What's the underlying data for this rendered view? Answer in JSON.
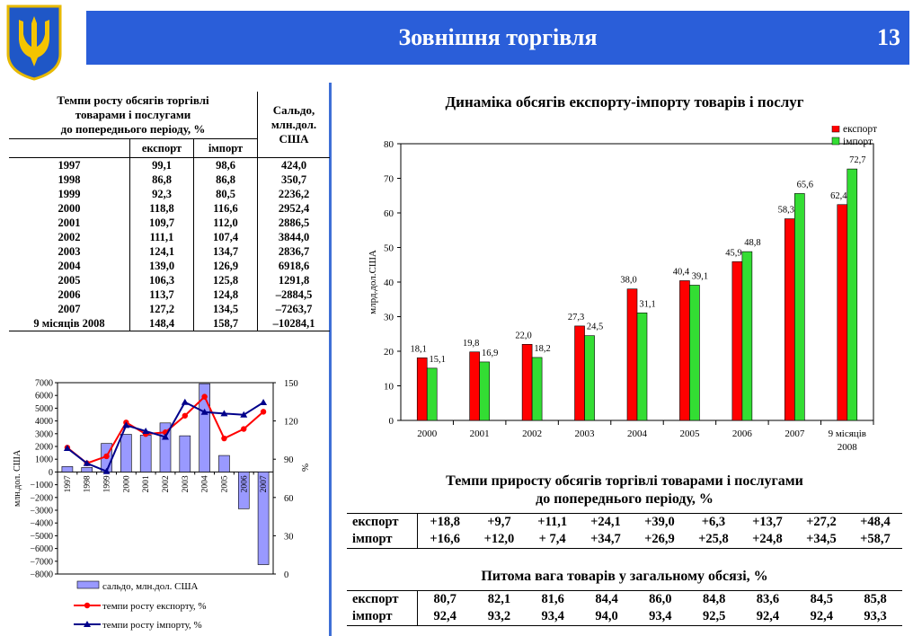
{
  "header": {
    "title": "Зовнішня торгівля",
    "page_number": "13"
  },
  "table": {
    "title_lines": [
      "Темпи росту обсягів торгівлі",
      "товарами і послугами",
      "до попереднього періоду, %"
    ],
    "balance_header_lines": [
      "Сальдо,",
      "млн.дол.",
      "США"
    ],
    "col_export": "експорт",
    "col_import": "імпорт",
    "rows": [
      {
        "year": "1997",
        "exp": "99,1",
        "imp": "98,6",
        "bal": "424,0"
      },
      {
        "year": "1998",
        "exp": "86,8",
        "imp": "86,8",
        "bal": "350,7"
      },
      {
        "year": "1999",
        "exp": "92,3",
        "imp": "80,5",
        "bal": "2236,2"
      },
      {
        "year": "2000",
        "exp": "118,8",
        "imp": "116,6",
        "bal": "2952,4"
      },
      {
        "year": "2001",
        "exp": "109,7",
        "imp": "112,0",
        "bal": "2886,5"
      },
      {
        "year": "2002",
        "exp": "111,1",
        "imp": "107,4",
        "bal": "3844,0"
      },
      {
        "year": "2003",
        "exp": "124,1",
        "imp": "134,7",
        "bal": "2836,7"
      },
      {
        "year": "2004",
        "exp": "139,0",
        "imp": "126,9",
        "bal": "6918,6"
      },
      {
        "year": "2005",
        "exp": "106,3",
        "imp": "125,8",
        "bal": "1291,8"
      },
      {
        "year": "2006",
        "exp": "113,7",
        "imp": "124,8",
        "bal": "–2884,5"
      },
      {
        "year": "2007",
        "exp": "127,2",
        "imp": "134,5",
        "bal": "–7263,7"
      },
      {
        "year": "9 місяців 2008",
        "exp": "148,4",
        "imp": "158,7",
        "bal": "–10284,1"
      }
    ]
  },
  "growth": {
    "title_lines": [
      "Темпи  приросту обсягів торгівлі товарами і послугами",
      "до попереднього періоду, %"
    ],
    "rows": [
      {
        "label": "експорт",
        "values": [
          "+18,8",
          "+9,7",
          "+11,1",
          "+24,1",
          "+39,0",
          "+6,3",
          "+13,7",
          "+27,2",
          "+48,4"
        ]
      },
      {
        "label": "імпорт",
        "values": [
          "+16,6",
          "+12,0",
          "+ 7,4",
          "+34,7",
          "+26,9",
          "+25,8",
          "+24,8",
          "+34,5",
          "+58,7"
        ]
      }
    ]
  },
  "share": {
    "title": "Питома вага товарів у загальному обсязі, %",
    "rows": [
      {
        "label": "експорт",
        "values": [
          "80,7",
          "82,1",
          "81,6",
          "84,4",
          "86,0",
          "84,8",
          "83,6",
          "84,5",
          "85,8"
        ]
      },
      {
        "label": "імпорт",
        "values": [
          "92,4",
          "93,2",
          "93,4",
          "94,0",
          "93,4",
          "92,5",
          "92,4",
          "92,4",
          "93,3"
        ]
      }
    ]
  },
  "chart_data": [
    {
      "type": "bar",
      "title": "Динаміка обсягів експорту-імпорту товарів і послуг",
      "ylabel": "млрд.дол.США",
      "ylim": [
        0,
        80
      ],
      "yticks": [
        "0",
        "10",
        "20",
        "30",
        "40",
        "50",
        "60",
        "70",
        "80"
      ],
      "categories": [
        "2000",
        "2001",
        "2002",
        "2003",
        "2004",
        "2005",
        "2006",
        "2007",
        "9 місяців 2008"
      ],
      "series": [
        {
          "name": "експорт",
          "color": "#ff0000",
          "values": [
            18.1,
            19.8,
            22.0,
            27.3,
            38.0,
            40.4,
            45.9,
            58.3,
            62.4
          ],
          "labels": [
            "18,1",
            "19,8",
            "22,0",
            "27,3",
            "38,0",
            "40,4",
            "45,9",
            "58,3",
            "62,4"
          ]
        },
        {
          "name": "імпорт",
          "color": "#33dd33",
          "values": [
            15.1,
            16.9,
            18.2,
            24.5,
            31.1,
            39.1,
            48.8,
            65.6,
            72.7
          ],
          "labels": [
            "15,1",
            "16,9",
            "18,2",
            "24,5",
            "31,1",
            "39,1",
            "48,8",
            "65,6",
            "72,7"
          ]
        }
      ],
      "legend": "top-right"
    },
    {
      "type": "bar+line",
      "categories": [
        "1997",
        "1998",
        "1999",
        "2000",
        "2001",
        "2002",
        "2003",
        "2004",
        "2005",
        "2006",
        "2007"
      ],
      "ylabel_left": "млн.дол. США",
      "ylabel_right": "%",
      "ylim_left": [
        -8000,
        7000
      ],
      "yticks_left": [
        "7000",
        "6000",
        "5000",
        "4000",
        "3000",
        "2000",
        "1000",
        "0",
        "−1000",
        "−2000",
        "−3000",
        "−4000",
        "−5000",
        "−6000",
        "−7000",
        "−8000"
      ],
      "ylim_right": [
        0,
        150
      ],
      "yticks_right": [
        "150",
        "120",
        "90",
        "60",
        "30",
        "0"
      ],
      "bars": {
        "name": "сальдо, млн.дол. США",
        "color": "#9999ff",
        "values": [
          424.0,
          350.7,
          2236.2,
          2952.4,
          2886.5,
          3844.0,
          2836.7,
          6918.6,
          1291.8,
          -2884.5,
          -7263.7
        ]
      },
      "lines": [
        {
          "name": "темпи росту експорту, %",
          "color": "#ff0000",
          "values": [
            99.1,
            86.8,
            92.3,
            118.8,
            109.7,
            111.1,
            124.1,
            139.0,
            106.3,
            113.7,
            127.2
          ]
        },
        {
          "name": "темпи росту імпорту, %",
          "color": "#00008b",
          "values": [
            98.6,
            86.8,
            80.5,
            116.6,
            112.0,
            107.4,
            134.7,
            126.9,
            125.8,
            124.8,
            134.5
          ]
        }
      ],
      "legend": "bottom"
    }
  ]
}
